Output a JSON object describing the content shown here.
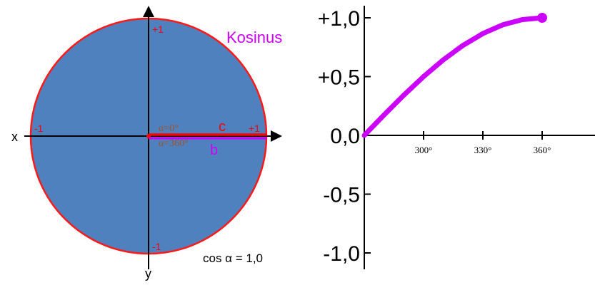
{
  "unit_circle": {
    "x_axis_label": "x",
    "y_axis_label": "y",
    "tick_top": "+1",
    "tick_bottom": "-1",
    "tick_left": "-1",
    "tick_right": "+1",
    "angle_label_1": "α=0°",
    "angle_label_2": "α=360°",
    "segment_c_label": "c",
    "segment_b_label": "b",
    "function_name": "Kosinus",
    "formula": "cos α = 1,0",
    "colors": {
      "fill": "#4e81bd",
      "outline": "#ff1a1a",
      "segment_c": "#ff0000",
      "segment_b": "#cc00ff",
      "function_label": "#cc00ff",
      "tick_labels": "#ff0000",
      "angle_labels": "#a0522d"
    }
  },
  "chart_data": {
    "type": "line",
    "title": "",
    "xlabel": "",
    "ylabel": "",
    "x_ticks": [
      "300°",
      "330°",
      "360°"
    ],
    "y_ticks": [
      "+1,0",
      "+0,5",
      "0,0",
      "-0,5",
      "-1,0"
    ],
    "ylim": [
      -1.0,
      1.0
    ],
    "x": [
      270,
      280,
      290,
      300,
      310,
      320,
      330,
      340,
      350,
      360
    ],
    "series": [
      {
        "color": "#cc00ff",
        "values": [
          0.0,
          0.174,
          0.342,
          0.5,
          0.643,
          0.766,
          0.866,
          0.94,
          0.985,
          1.0
        ]
      }
    ]
  }
}
